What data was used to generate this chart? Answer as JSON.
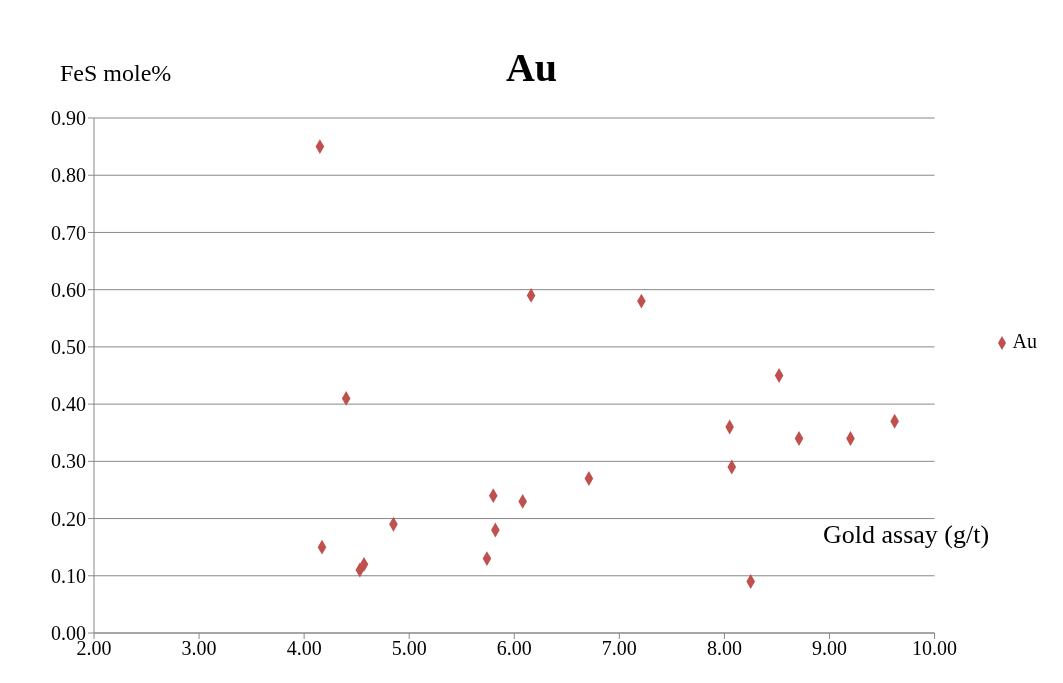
{
  "chart_data": {
    "type": "scatter",
    "title": "Au",
    "xlabel": "Gold assay (g/t)",
    "ylabel": "FeS mole%",
    "xlim": [
      2,
      10
    ],
    "xticks": [
      {
        "value": 2,
        "label": "2.00"
      },
      {
        "value": 3,
        "label": "3.00"
      },
      {
        "value": 4,
        "label": "4.00"
      },
      {
        "value": 5,
        "label": "5.00"
      },
      {
        "value": 6,
        "label": "6.00"
      },
      {
        "value": 7,
        "label": "7.00"
      },
      {
        "value": 8,
        "label": "8.00"
      },
      {
        "value": 9,
        "label": "9.00"
      },
      {
        "value": 10,
        "label": "10.00"
      }
    ],
    "ylim": [
      0,
      0.9
    ],
    "yticks": [
      {
        "value": 0,
        "label": "0.00"
      },
      {
        "value": 0.1,
        "label": "0.10"
      },
      {
        "value": 0.2,
        "label": "0.20"
      },
      {
        "value": 0.3,
        "label": "0.30"
      },
      {
        "value": 0.4,
        "label": "0.40"
      },
      {
        "value": 0.5,
        "label": "0.50"
      },
      {
        "value": 0.6,
        "label": "0.60"
      },
      {
        "value": 0.7,
        "label": "0.70"
      },
      {
        "value": 0.8,
        "label": "0.80"
      },
      {
        "value": 0.9,
        "label": "0.90"
      }
    ],
    "grid": "y",
    "legend": "right",
    "marker": "diamond",
    "series": [
      {
        "name": "Au",
        "color": "#c0504d",
        "x": [
          4.15,
          4.17,
          4.4,
          4.53,
          4.57,
          4.85,
          5.74,
          5.8,
          5.82,
          6.08,
          6.16,
          6.71,
          7.21,
          8.05,
          8.07,
          8.25,
          8.52,
          8.71,
          9.2,
          9.62
        ],
        "values": [
          0.85,
          0.15,
          0.41,
          0.11,
          0.12,
          0.19,
          0.13,
          0.24,
          0.18,
          0.23,
          0.59,
          0.27,
          0.58,
          0.36,
          0.29,
          0.09,
          0.45,
          0.34,
          0.34,
          0.37
        ]
      }
    ]
  }
}
